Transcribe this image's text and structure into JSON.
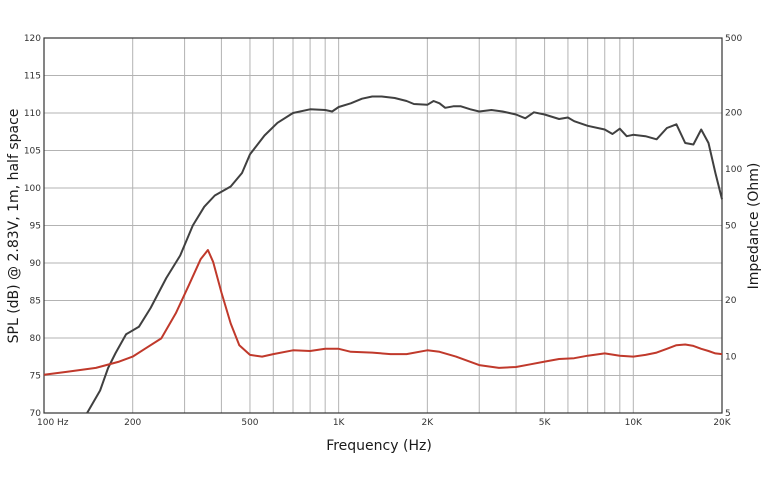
{
  "chart_data": {
    "type": "line",
    "title": "",
    "xlabel": "Frequency (Hz)",
    "ylabel_left": "SPL (dB) @ 2.83V, 1m, half space",
    "ylabel_right": "Impedance (Ohm)",
    "x_scale": "log",
    "xlim": [
      100,
      20000
    ],
    "ylim_left": [
      70,
      120
    ],
    "ylim_right": [
      5,
      500
    ],
    "y_right_scale": "log",
    "grid": true,
    "x_ticks": [
      {
        "value": 100,
        "label": "100 Hz"
      },
      {
        "value": 200,
        "label": "200"
      },
      {
        "value": 500,
        "label": "500"
      },
      {
        "value": 1000,
        "label": "1K"
      },
      {
        "value": 2000,
        "label": "2K"
      },
      {
        "value": 5000,
        "label": "5K"
      },
      {
        "value": 10000,
        "label": "10K"
      },
      {
        "value": 20000,
        "label": "20K"
      }
    ],
    "y_left_ticks": [
      {
        "value": 70,
        "label": "70"
      },
      {
        "value": 75,
        "label": "75"
      },
      {
        "value": 80,
        "label": "80"
      },
      {
        "value": 85,
        "label": "85"
      },
      {
        "value": 90,
        "label": "90"
      },
      {
        "value": 95,
        "label": "95"
      },
      {
        "value": 100,
        "label": "100"
      },
      {
        "value": 105,
        "label": "105"
      },
      {
        "value": 110,
        "label": "110"
      },
      {
        "value": 115,
        "label": "115"
      },
      {
        "value": 120,
        "label": "120"
      }
    ],
    "y_right_ticks": [
      {
        "value": 500,
        "label": "500"
      },
      {
        "value": 200,
        "label": "200"
      },
      {
        "value": 100,
        "label": "100"
      },
      {
        "value": 50,
        "label": "50"
      },
      {
        "value": 20,
        "label": "20"
      },
      {
        "value": 10,
        "label": "10"
      },
      {
        "value": 5,
        "label": "5"
      }
    ],
    "series": [
      {
        "axis": "left",
        "color": "#404040",
        "points": [
          [
            140,
            70
          ],
          [
            155,
            73
          ],
          [
            165,
            76
          ],
          [
            175,
            78
          ],
          [
            190,
            80.5
          ],
          [
            210,
            81.5
          ],
          [
            230,
            84
          ],
          [
            260,
            88
          ],
          [
            290,
            91
          ],
          [
            320,
            95
          ],
          [
            350,
            97.5
          ],
          [
            380,
            99
          ],
          [
            430,
            100.2
          ],
          [
            470,
            102
          ],
          [
            500,
            104.5
          ],
          [
            560,
            107
          ],
          [
            620,
            108.7
          ],
          [
            700,
            110
          ],
          [
            800,
            110.5
          ],
          [
            900,
            110.4
          ],
          [
            950,
            110.2
          ],
          [
            1000,
            110.8
          ],
          [
            1100,
            111.3
          ],
          [
            1200,
            111.9
          ],
          [
            1300,
            112.2
          ],
          [
            1400,
            112.2
          ],
          [
            1550,
            112
          ],
          [
            1700,
            111.6
          ],
          [
            1800,
            111.2
          ],
          [
            2000,
            111.1
          ],
          [
            2100,
            111.6
          ],
          [
            2200,
            111.3
          ],
          [
            2300,
            110.7
          ],
          [
            2450,
            110.9
          ],
          [
            2600,
            110.9
          ],
          [
            2800,
            110.5
          ],
          [
            3000,
            110.2
          ],
          [
            3300,
            110.4
          ],
          [
            3600,
            110.2
          ],
          [
            4000,
            109.8
          ],
          [
            4300,
            109.3
          ],
          [
            4600,
            110.1
          ],
          [
            5000,
            109.8
          ],
          [
            5600,
            109.2
          ],
          [
            6000,
            109.4
          ],
          [
            6300,
            108.9
          ],
          [
            7000,
            108.3
          ],
          [
            8000,
            107.8
          ],
          [
            8500,
            107.2
          ],
          [
            9000,
            107.9
          ],
          [
            9500,
            106.9
          ],
          [
            10000,
            107.1
          ],
          [
            11000,
            106.9
          ],
          [
            12000,
            106.5
          ],
          [
            13000,
            108
          ],
          [
            14000,
            108.5
          ],
          [
            15000,
            106
          ],
          [
            16000,
            105.8
          ],
          [
            17000,
            107.8
          ],
          [
            18000,
            106
          ],
          [
            19000,
            102
          ],
          [
            20000,
            98.5
          ]
        ]
      },
      {
        "axis": "right",
        "color": "#c0392b",
        "points": [
          [
            100,
            8.0
          ],
          [
            120,
            8.3
          ],
          [
            150,
            8.7
          ],
          [
            180,
            9.4
          ],
          [
            200,
            10
          ],
          [
            220,
            11
          ],
          [
            250,
            12.5
          ],
          [
            280,
            17
          ],
          [
            310,
            24
          ],
          [
            340,
            33
          ],
          [
            360,
            37
          ],
          [
            375,
            32
          ],
          [
            400,
            22
          ],
          [
            430,
            15
          ],
          [
            460,
            11.5
          ],
          [
            500,
            10.2
          ],
          [
            550,
            10
          ],
          [
            600,
            10.3
          ],
          [
            700,
            10.8
          ],
          [
            800,
            10.7
          ],
          [
            900,
            11
          ],
          [
            1000,
            11
          ],
          [
            1100,
            10.6
          ],
          [
            1300,
            10.5
          ],
          [
            1500,
            10.3
          ],
          [
            1700,
            10.3
          ],
          [
            2000,
            10.8
          ],
          [
            2200,
            10.6
          ],
          [
            2500,
            10
          ],
          [
            3000,
            9
          ],
          [
            3500,
            8.7
          ],
          [
            4000,
            8.8
          ],
          [
            4500,
            9.1
          ],
          [
            5000,
            9.4
          ],
          [
            5600,
            9.7
          ],
          [
            6300,
            9.8
          ],
          [
            7000,
            10.1
          ],
          [
            8000,
            10.4
          ],
          [
            9000,
            10.1
          ],
          [
            10000,
            10
          ],
          [
            11000,
            10.2
          ],
          [
            12000,
            10.5
          ],
          [
            13000,
            11
          ],
          [
            14000,
            11.5
          ],
          [
            15000,
            11.6
          ],
          [
            16000,
            11.4
          ],
          [
            17000,
            11
          ],
          [
            18000,
            10.7
          ],
          [
            19000,
            10.4
          ],
          [
            20000,
            10.3
          ]
        ]
      }
    ]
  }
}
